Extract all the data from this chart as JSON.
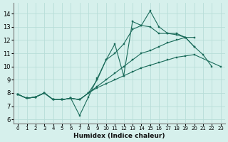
{
  "title": "",
  "xlabel": "Humidex (Indice chaleur)",
  "bg_color": "#d6f0ec",
  "grid_color": "#b8ddd8",
  "line_color": "#1a6b5a",
  "xlim": [
    -0.5,
    23.5
  ],
  "ylim": [
    5.7,
    14.8
  ],
  "yticks": [
    6,
    7,
    8,
    9,
    10,
    11,
    12,
    13,
    14
  ],
  "xticks": [
    0,
    1,
    2,
    3,
    4,
    5,
    6,
    7,
    8,
    9,
    10,
    11,
    12,
    13,
    14,
    15,
    16,
    17,
    18,
    19,
    20,
    21,
    22,
    23
  ],
  "series1_x": [
    0,
    1,
    2,
    3,
    4,
    5,
    6,
    7,
    8,
    9,
    10,
    11,
    12,
    13,
    14,
    15,
    16,
    17,
    18,
    19,
    20,
    21,
    22
  ],
  "series1_y": [
    7.9,
    7.6,
    7.7,
    8.0,
    7.5,
    7.5,
    7.6,
    6.3,
    7.7,
    9.1,
    10.5,
    11.7,
    9.3,
    13.4,
    13.1,
    14.2,
    13.0,
    12.5,
    12.4,
    12.2,
    11.5,
    10.9,
    10.0
  ],
  "series2_x": [
    0,
    1,
    2,
    3,
    4,
    5,
    6,
    7,
    8,
    9,
    10,
    11,
    12,
    13,
    14,
    15,
    16,
    17,
    18,
    19,
    20
  ],
  "series2_y": [
    7.9,
    7.6,
    7.7,
    8.0,
    7.5,
    7.5,
    7.6,
    7.5,
    8.0,
    9.0,
    10.5,
    11.0,
    11.7,
    12.8,
    13.1,
    13.0,
    12.5,
    12.5,
    12.5,
    12.2,
    11.5
  ],
  "series3_x": [
    0,
    1,
    2,
    3,
    4,
    5,
    6,
    7,
    8,
    9,
    10,
    11,
    12,
    13,
    14,
    15,
    16,
    17,
    18,
    19,
    20
  ],
  "series3_y": [
    7.9,
    7.6,
    7.7,
    8.0,
    7.5,
    7.5,
    7.6,
    7.5,
    8.0,
    8.5,
    9.0,
    9.5,
    10.0,
    10.5,
    11.0,
    11.2,
    11.5,
    11.8,
    12.0,
    12.2,
    12.2
  ],
  "series4_x": [
    0,
    1,
    2,
    3,
    4,
    5,
    6,
    7,
    8,
    9,
    10,
    11,
    12,
    13,
    14,
    15,
    16,
    17,
    18,
    19,
    20,
    23
  ],
  "series4_y": [
    7.9,
    7.6,
    7.7,
    8.0,
    7.5,
    7.5,
    7.6,
    7.5,
    8.0,
    8.4,
    8.7,
    9.0,
    9.3,
    9.6,
    9.9,
    10.1,
    10.3,
    10.5,
    10.7,
    10.8,
    10.9,
    10.0
  ],
  "xlabel_fontsize": 6.5,
  "tick_fontsize_x": 5.0,
  "tick_fontsize_y": 6.0,
  "linewidth": 0.8,
  "markersize": 2.0
}
